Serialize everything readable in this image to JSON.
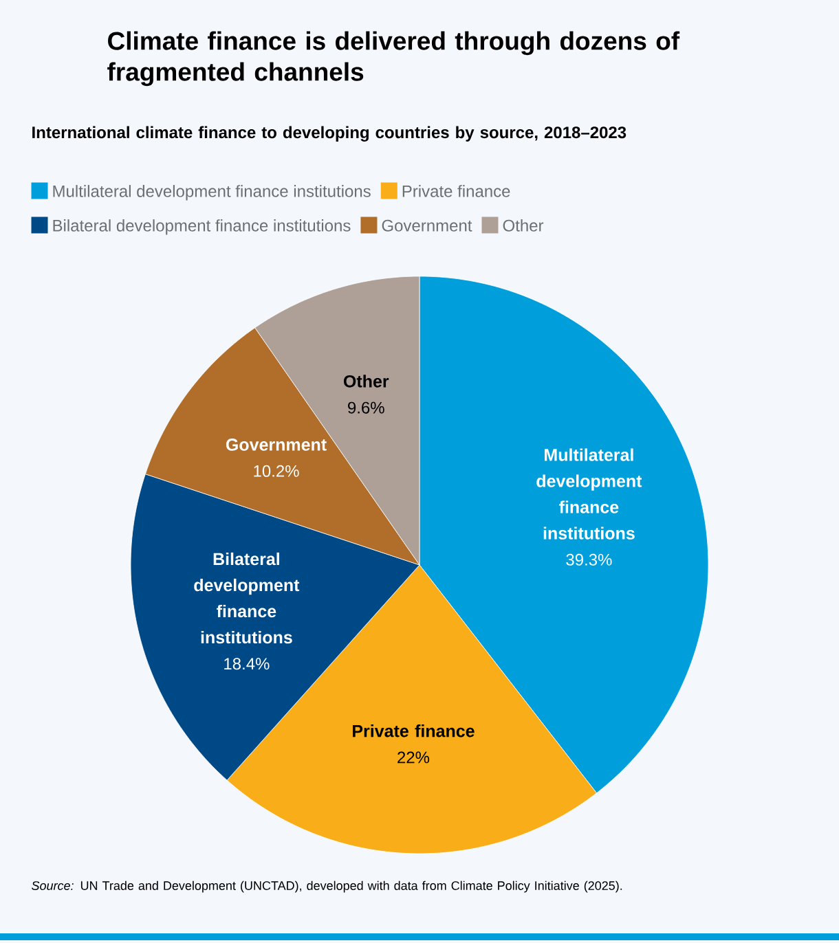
{
  "chart_data": {
    "type": "pie",
    "title": "Climate finance is delivered through dozens of fragmented channels",
    "subtitle": "International climate finance to developing countries by source, 2018–2023",
    "categories": [
      "Multilateral development finance institutions",
      "Private finance",
      "Bilateral development finance institutions",
      "Government",
      "Other"
    ],
    "values": [
      39.3,
      22,
      18.4,
      10.2,
      9.6
    ],
    "colors": [
      "#009fdb",
      "#f9ae19",
      "#004987",
      "#b06e2a",
      "#ae9f97"
    ],
    "value_labels": [
      "39.3%",
      "22%",
      "18.4%",
      "10.2%",
      "9.6%"
    ],
    "legend": "top",
    "annotations": [
      "*Source:* UN Trade and Development (UNCTAD), developed with data from Climate Policy Initiative (2025)."
    ]
  }
}
